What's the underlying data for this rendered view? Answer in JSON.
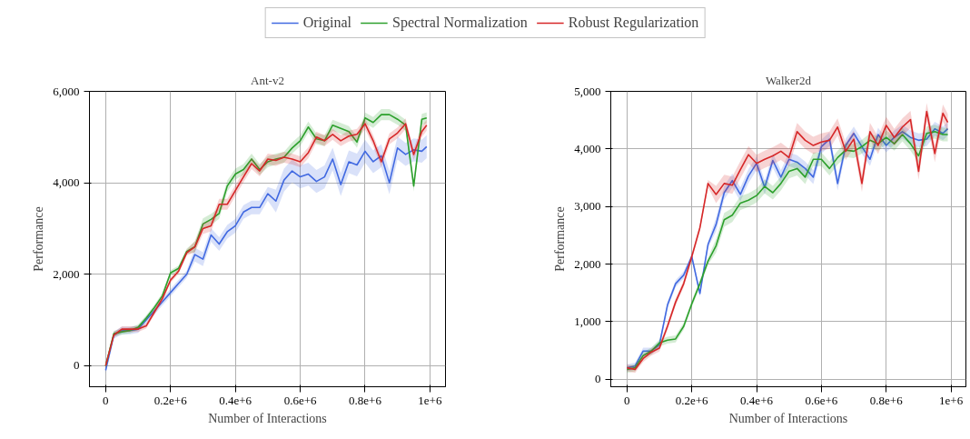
{
  "chart_data": [
    {
      "type": "line",
      "title": "Ant-v2",
      "xlabel": "Number of Interactions",
      "ylabel": "Performance",
      "legend": "top",
      "grid": true,
      "xlim": [
        -50000,
        1048000
      ],
      "ylim": [
        -460,
        6000
      ],
      "xticks": [
        0,
        {
          "value": 200000,
          "label": "0.2e+6"
        },
        {
          "value": 400000,
          "label": "0.4e+6"
        },
        {
          "value": 600000,
          "label": "0.6e+6"
        },
        {
          "value": 800000,
          "label": "0.8e+6"
        },
        {
          "value": 1000000,
          "label": "1e+6"
        }
      ],
      "yticks": [
        0,
        {
          "value": 2000,
          "label": "2,000"
        },
        {
          "value": 4000,
          "label": "4,000"
        },
        {
          "value": 6000,
          "label": "6,000"
        }
      ],
      "x": [
        0,
        25000,
        50000,
        75000,
        100000,
        125000,
        150000,
        175000,
        200000,
        225000,
        250000,
        275000,
        300000,
        325000,
        350000,
        375000,
        400000,
        425000,
        450000,
        475000,
        500000,
        525000,
        550000,
        575000,
        600000,
        625000,
        650000,
        675000,
        700000,
        725000,
        750000,
        775000,
        800000,
        825000,
        850000,
        875000,
        900000,
        925000,
        950000,
        975000,
        990000
      ],
      "series": [
        {
          "name": "Original",
          "color": "#4169e1",
          "values": [
            -100,
            670,
            770,
            770,
            800,
            1000,
            1200,
            1400,
            1600,
            1800,
            2000,
            2430,
            2330,
            2860,
            2660,
            2930,
            3060,
            3360,
            3460,
            3460,
            3760,
            3600,
            4060,
            4260,
            4130,
            4190,
            4030,
            4130,
            4520,
            3960,
            4460,
            4390,
            4690,
            4460,
            4590,
            4000,
            4760,
            4620,
            4720,
            4690,
            4790
          ],
          "lower": [
            -180,
            590,
            690,
            690,
            720,
            920,
            1120,
            1320,
            1520,
            1720,
            1920,
            2280,
            2180,
            2710,
            2510,
            2780,
            2910,
            3210,
            3310,
            3310,
            3610,
            3350,
            3810,
            4010,
            3880,
            3940,
            3780,
            3880,
            4270,
            3710,
            4210,
            4140,
            4440,
            4210,
            4340,
            3750,
            4510,
            4370,
            4470,
            4440,
            4540
          ],
          "upper": [
            -20,
            750,
            850,
            850,
            880,
            1080,
            1280,
            1480,
            1680,
            1880,
            2080,
            2580,
            2480,
            3010,
            2810,
            3080,
            3210,
            3510,
            3610,
            3610,
            3910,
            3850,
            4310,
            4510,
            4380,
            4440,
            4280,
            4380,
            4770,
            4210,
            4710,
            4640,
            4940,
            4710,
            4840,
            4250,
            5010,
            4870,
            4970,
            4940,
            5040
          ]
        },
        {
          "name": "Spectral Normalization",
          "color": "#2ca02c",
          "values": [
            0,
            700,
            740,
            770,
            840,
            1040,
            1270,
            1530,
            2030,
            2130,
            2500,
            2600,
            3100,
            3200,
            3330,
            3930,
            4190,
            4290,
            4520,
            4290,
            4460,
            4520,
            4560,
            4760,
            4920,
            5220,
            4960,
            4920,
            5260,
            5190,
            5120,
            4890,
            5420,
            5320,
            5490,
            5490,
            5390,
            5260,
            3930,
            5390,
            5420
          ],
          "lower": [
            -60,
            640,
            680,
            710,
            780,
            980,
            1210,
            1470,
            1970,
            2070,
            2440,
            2480,
            2980,
            3080,
            3210,
            3810,
            4070,
            4170,
            4400,
            4170,
            4340,
            4400,
            4440,
            4640,
            4800,
            5100,
            4840,
            4800,
            5140,
            5070,
            5000,
            4770,
            5300,
            5200,
            5370,
            5370,
            5270,
            5140,
            3810,
            5270,
            5300
          ],
          "upper": [
            60,
            760,
            800,
            830,
            900,
            1100,
            1330,
            1590,
            2090,
            2190,
            2560,
            2720,
            3220,
            3320,
            3450,
            4050,
            4310,
            4410,
            4640,
            4410,
            4580,
            4640,
            4680,
            4880,
            5040,
            5340,
            5080,
            5040,
            5380,
            5310,
            5240,
            5010,
            5540,
            5440,
            5610,
            5610,
            5510,
            5380,
            4050,
            5510,
            5540
          ]
        },
        {
          "name": "Robust Regularization",
          "color": "#d62728",
          "values": [
            0,
            670,
            800,
            800,
            800,
            870,
            1170,
            1470,
            1870,
            2070,
            2470,
            2600,
            3000,
            3060,
            3530,
            3530,
            3830,
            4130,
            4420,
            4260,
            4520,
            4490,
            4560,
            4520,
            4460,
            4660,
            5000,
            4920,
            5060,
            4920,
            5020,
            5060,
            5290,
            4920,
            4460,
            4960,
            5090,
            5290,
            4620,
            5120,
            5260
          ],
          "lower": [
            -60,
            610,
            740,
            740,
            740,
            810,
            1110,
            1410,
            1810,
            2010,
            2410,
            2480,
            2880,
            2940,
            3410,
            3410,
            3710,
            4010,
            4300,
            4140,
            4400,
            4370,
            4440,
            4400,
            4340,
            4540,
            4880,
            4800,
            4940,
            4800,
            4900,
            4940,
            5170,
            4800,
            4340,
            4840,
            4970,
            5170,
            4500,
            5000,
            5140
          ],
          "upper": [
            60,
            730,
            860,
            860,
            860,
            930,
            1230,
            1530,
            1930,
            2130,
            2530,
            2720,
            3120,
            3180,
            3650,
            3650,
            3950,
            4250,
            4540,
            4380,
            4640,
            4610,
            4680,
            4640,
            4580,
            4780,
            5120,
            5040,
            5180,
            5040,
            5140,
            5180,
            5410,
            5040,
            4580,
            5080,
            5210,
            5410,
            4740,
            5240,
            5380
          ]
        }
      ]
    },
    {
      "type": "line",
      "title": "Walker2d",
      "xlabel": "Number of Interactions",
      "ylabel": "Performance",
      "grid": true,
      "xlim": [
        -50000,
        1046000
      ],
      "ylim": [
        -130,
        5000
      ],
      "xticks": [
        0,
        {
          "value": 200000,
          "label": "0.2e+6"
        },
        {
          "value": 400000,
          "label": "0.4e+6"
        },
        {
          "value": 600000,
          "label": "0.6e+6"
        },
        {
          "value": 800000,
          "label": "0.8e+6"
        },
        {
          "value": 1000000,
          "label": "1e+6"
        }
      ],
      "yticks": [
        0,
        {
          "value": 1000,
          "label": "1,000"
        },
        {
          "value": 2000,
          "label": "2,000"
        },
        {
          "value": 3000,
          "label": "3,000"
        },
        {
          "value": 4000,
          "label": "4,000"
        },
        {
          "value": 5000,
          "label": "5,000"
        }
      ],
      "x": [
        0,
        25000,
        50000,
        75000,
        100000,
        125000,
        150000,
        175000,
        200000,
        225000,
        250000,
        275000,
        300000,
        325000,
        350000,
        375000,
        400000,
        425000,
        450000,
        475000,
        500000,
        525000,
        550000,
        575000,
        600000,
        625000,
        650000,
        675000,
        700000,
        725000,
        750000,
        775000,
        800000,
        825000,
        850000,
        875000,
        900000,
        925000,
        950000,
        975000,
        990000
      ],
      "series": [
        {
          "color": "#4169e1",
          "values": [
            200,
            230,
            490,
            490,
            600,
            1290,
            1660,
            1810,
            2130,
            1490,
            2340,
            2690,
            3240,
            3450,
            3210,
            3530,
            3750,
            3330,
            3800,
            3510,
            3820,
            3770,
            3660,
            3510,
            4040,
            4170,
            3400,
            4060,
            4270,
            4040,
            3820,
            4250,
            4060,
            4200,
            4300,
            4200,
            4150,
            4170,
            4350,
            4270,
            4350
          ],
          "lower": [
            140,
            170,
            430,
            430,
            540,
            1230,
            1600,
            1750,
            2070,
            1430,
            2280,
            2570,
            3120,
            3330,
            3090,
            3410,
            3630,
            3210,
            3680,
            3390,
            3700,
            3650,
            3540,
            3390,
            3920,
            4050,
            3280,
            3940,
            4150,
            3920,
            3700,
            4130,
            3940,
            4080,
            4180,
            4080,
            4030,
            4050,
            4230,
            4150,
            4230
          ],
          "upper": [
            260,
            290,
            550,
            550,
            660,
            1350,
            1720,
            1870,
            2190,
            1550,
            2400,
            2810,
            3360,
            3570,
            3330,
            3650,
            3870,
            3450,
            3920,
            3630,
            3940,
            3890,
            3780,
            3630,
            4160,
            4290,
            3520,
            4180,
            4390,
            4160,
            3940,
            4370,
            4180,
            4320,
            4420,
            4320,
            4270,
            4290,
            4470,
            4390,
            4470
          ]
        },
        {
          "color": "#2ca02c",
          "values": [
            170,
            200,
            410,
            490,
            630,
            680,
            700,
            920,
            1310,
            1660,
            2050,
            2320,
            2770,
            2850,
            3060,
            3110,
            3190,
            3350,
            3240,
            3400,
            3610,
            3660,
            3510,
            3820,
            3820,
            3660,
            3850,
            3980,
            3960,
            4040,
            4150,
            4090,
            4200,
            4090,
            4250,
            4090,
            3880,
            4270,
            4300,
            4250,
            4250
          ],
          "lower": [
            110,
            140,
            350,
            430,
            570,
            620,
            640,
            860,
            1250,
            1600,
            1990,
            2200,
            2650,
            2730,
            2940,
            2990,
            3070,
            3230,
            3120,
            3280,
            3490,
            3540,
            3390,
            3700,
            3700,
            3540,
            3730,
            3860,
            3840,
            3920,
            4030,
            3970,
            4080,
            3970,
            4130,
            3970,
            3760,
            4150,
            4180,
            4130,
            4130
          ],
          "upper": [
            230,
            260,
            470,
            550,
            690,
            740,
            760,
            980,
            1370,
            1720,
            2110,
            2440,
            2890,
            2970,
            3180,
            3230,
            3310,
            3470,
            3360,
            3520,
            3730,
            3780,
            3630,
            3940,
            3940,
            3780,
            3970,
            4100,
            4080,
            4160,
            4270,
            4210,
            4320,
            4210,
            4370,
            4210,
            4000,
            4390,
            4420,
            4370,
            4370
          ]
        },
        {
          "color": "#d62728",
          "values": [
            200,
            170,
            360,
            470,
            540,
            920,
            1340,
            1660,
            2130,
            2630,
            3400,
            3210,
            3400,
            3370,
            3640,
            3900,
            3750,
            3820,
            3880,
            3960,
            3850,
            4300,
            4150,
            4060,
            4120,
            4150,
            4380,
            3960,
            4170,
            3400,
            4300,
            4060,
            4410,
            4200,
            4380,
            4510,
            3610,
            4650,
            3920,
            4620,
            4460
          ],
          "lower": [
            140,
            110,
            300,
            410,
            480,
            860,
            1280,
            1600,
            2070,
            2570,
            3340,
            3060,
            3250,
            3220,
            3490,
            3750,
            3600,
            3670,
            3730,
            3810,
            3700,
            4150,
            4000,
            3910,
            3970,
            4000,
            4230,
            3810,
            4020,
            3250,
            4150,
            3910,
            4260,
            4050,
            4230,
            4360,
            3460,
            4500,
            3770,
            4470,
            4310
          ],
          "upper": [
            260,
            230,
            420,
            530,
            600,
            980,
            1400,
            1720,
            2190,
            2690,
            3460,
            3360,
            3550,
            3520,
            3790,
            4050,
            3900,
            3970,
            4030,
            4110,
            4000,
            4450,
            4300,
            4210,
            4270,
            4300,
            4530,
            4110,
            4320,
            3550,
            4450,
            4210,
            4560,
            4350,
            4530,
            4660,
            3760,
            4800,
            4070,
            4770,
            4610
          ]
        }
      ]
    }
  ]
}
